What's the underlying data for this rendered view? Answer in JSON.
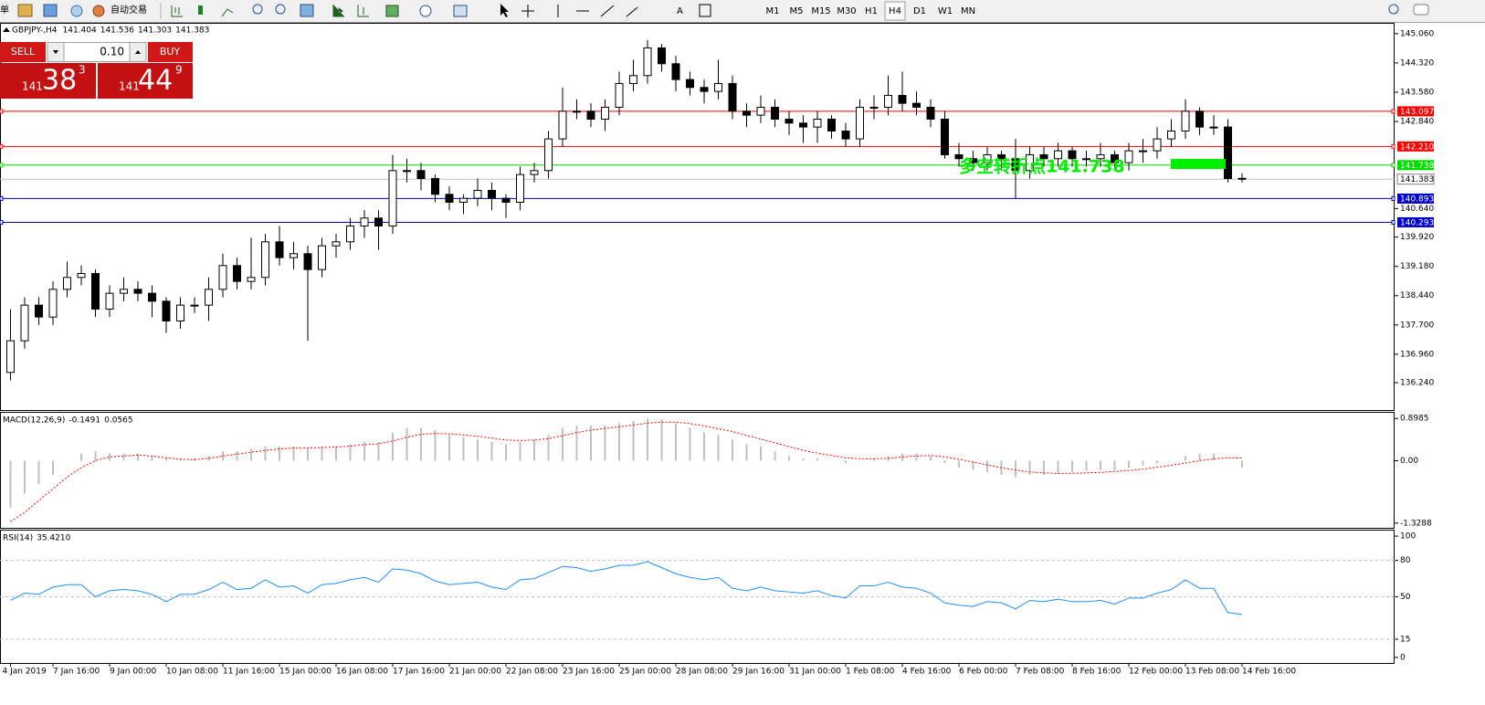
{
  "toolbar": {
    "menu_tail": "单",
    "autotrade": "自动交易",
    "timeframes": [
      "M1",
      "M5",
      "M15",
      "M30",
      "H1",
      "H4",
      "D1",
      "W1",
      "MN"
    ]
  },
  "trade_panel": {
    "sell": "SELL",
    "lot": "0.10",
    "buy": "BUY",
    "sell_price": {
      "big": "141",
      "pips": "38",
      "point": "3"
    },
    "buy_price": {
      "big": "141",
      "pips": "44",
      "point": "9"
    }
  },
  "chart_data": [
    {
      "type": "candlestick",
      "title": "GBPJPY-,H4",
      "last_ohlc": [
        141.404,
        141.536,
        141.303,
        141.383
      ],
      "annotation": "多空转折点141.738",
      "bid": 141.383,
      "levels": [
        {
          "value": 143.097,
          "label": "143.097",
          "color": "#ff0000"
        },
        {
          "value": 142.21,
          "label": "142.210",
          "color": "#ff0000"
        },
        {
          "value": 141.738,
          "label": "141.738",
          "color": "#00dd00"
        },
        {
          "value": 140.893,
          "label": "140.893",
          "color": "#0000cc"
        },
        {
          "value": 140.293,
          "label": "140.293",
          "color": "#0000cc"
        }
      ],
      "ylim": [
        135.55,
        145.31
      ],
      "yticks": [
        {
          "value": 145.06,
          "label": "145.060"
        },
        {
          "value": 144.32,
          "label": "144.320"
        },
        {
          "value": 143.58,
          "label": "143.580"
        },
        {
          "value": 142.84,
          "label": "142.840"
        },
        {
          "value": 140.64,
          "label": "140.640"
        },
        {
          "value": 139.92,
          "label": "139.920"
        },
        {
          "value": 139.18,
          "label": "139.180"
        },
        {
          "value": 138.44,
          "label": "138.440"
        },
        {
          "value": 137.7,
          "label": "137.700"
        },
        {
          "value": 136.96,
          "label": "136.960"
        },
        {
          "value": 136.24,
          "label": "136.240"
        }
      ],
      "categories": [
        "4 Jan 2019",
        null,
        null,
        "7 Jan 16:00",
        null,
        null,
        null,
        "9 Jan 00:00",
        null,
        null,
        null,
        "10 Jan 08:00",
        null,
        null,
        null,
        "11 Jan 16:00",
        null,
        null,
        null,
        "15 Jan 00:00",
        null,
        null,
        null,
        "16 Jan 08:00",
        null,
        null,
        null,
        "17 Jan 16:00",
        null,
        null,
        null,
        "21 Jan 00:00",
        null,
        null,
        null,
        "22 Jan 08:00",
        null,
        null,
        null,
        "23 Jan 16:00",
        null,
        null,
        null,
        "25 Jan 00:00",
        null,
        null,
        null,
        "28 Jan 08:00",
        null,
        null,
        null,
        "29 Jan 16:00",
        null,
        null,
        null,
        "31 Jan 00:00",
        null,
        null,
        null,
        "1 Feb 08:00",
        null,
        null,
        null,
        "4 Feb 16:00",
        null,
        null,
        null,
        "6 Feb 00:00",
        null,
        null,
        null,
        "7 Feb 08:00",
        null,
        null,
        null,
        "8 Feb 16:00",
        null,
        null,
        null,
        "12 Feb 00:00",
        null,
        null,
        null,
        "13 Feb 08:00",
        null,
        null,
        null,
        "14 Feb 16:00"
      ],
      "open": [
        136.5,
        137.3,
        138.2,
        137.9,
        138.6,
        138.9,
        139.0,
        138.1,
        138.5,
        138.6,
        138.5,
        138.3,
        137.8,
        138.2,
        138.2,
        138.6,
        139.2,
        138.8,
        138.9,
        139.8,
        139.4,
        139.5,
        139.1,
        139.7,
        139.8,
        140.2,
        140.4,
        140.2,
        141.6,
        141.6,
        141.4,
        141.0,
        140.8,
        140.9,
        141.1,
        140.9,
        140.8,
        141.5,
        141.6,
        142.4,
        143.1,
        143.1,
        142.9,
        143.2,
        143.8,
        144.0,
        144.7,
        144.3,
        143.9,
        143.7,
        143.6,
        143.8,
        143.1,
        143.0,
        143.2,
        142.9,
        142.8,
        142.7,
        142.9,
        142.6,
        142.4,
        143.2,
        143.2,
        143.5,
        143.3,
        143.2,
        142.9,
        142.0,
        141.9,
        141.8,
        142.0,
        141.9,
        141.6,
        142.0,
        141.9,
        142.1,
        141.9,
        141.9,
        142.0,
        141.8,
        142.1,
        142.1,
        142.4,
        142.6,
        143.1,
        142.7,
        142.7,
        141.404
      ],
      "high": [
        138.1,
        138.4,
        138.4,
        138.8,
        139.3,
        139.2,
        139.1,
        138.7,
        138.9,
        138.8,
        138.7,
        138.4,
        138.4,
        138.4,
        138.9,
        139.5,
        139.4,
        139.9,
        140.0,
        140.2,
        139.8,
        139.7,
        139.9,
        140.0,
        140.4,
        140.6,
        140.6,
        142.0,
        141.9,
        141.8,
        141.5,
        141.2,
        141.0,
        141.4,
        141.3,
        141.0,
        141.7,
        141.8,
        142.6,
        143.7,
        143.4,
        143.3,
        143.4,
        144.1,
        144.4,
        144.9,
        144.8,
        144.5,
        144.1,
        143.9,
        144.4,
        144.0,
        143.3,
        143.5,
        143.4,
        143.1,
        143.0,
        143.1,
        143.0,
        142.8,
        143.4,
        143.5,
        144.0,
        144.1,
        143.6,
        143.4,
        143.1,
        142.3,
        142.1,
        142.2,
        142.1,
        142.4,
        142.2,
        142.2,
        142.3,
        142.2,
        142.1,
        142.3,
        142.1,
        142.3,
        142.4,
        142.7,
        142.9,
        143.4,
        143.2,
        143.0,
        142.9,
        141.536
      ],
      "low": [
        136.3,
        137.1,
        137.7,
        137.7,
        138.4,
        138.7,
        137.9,
        137.9,
        138.3,
        138.3,
        137.9,
        137.5,
        137.6,
        138.0,
        137.8,
        138.4,
        138.6,
        138.6,
        138.7,
        139.2,
        139.1,
        137.3,
        138.9,
        139.4,
        139.6,
        139.9,
        139.6,
        140.0,
        141.3,
        141.1,
        140.8,
        140.6,
        140.5,
        140.7,
        140.6,
        140.4,
        140.6,
        141.3,
        141.4,
        142.2,
        142.9,
        142.7,
        142.6,
        143.0,
        143.6,
        143.8,
        144.1,
        143.6,
        143.5,
        143.3,
        143.4,
        142.9,
        142.7,
        142.8,
        142.7,
        142.5,
        142.3,
        142.3,
        142.4,
        142.2,
        142.2,
        142.9,
        143.0,
        143.1,
        143.0,
        142.7,
        141.9,
        141.7,
        141.6,
        141.6,
        141.6,
        140.9,
        141.4,
        141.7,
        141.7,
        141.7,
        141.7,
        141.7,
        141.6,
        141.6,
        141.8,
        141.9,
        142.2,
        142.4,
        142.5,
        142.5,
        141.3,
        141.303
      ],
      "close": [
        137.3,
        138.2,
        137.9,
        138.6,
        138.9,
        139.0,
        138.1,
        138.5,
        138.6,
        138.5,
        138.3,
        137.8,
        138.2,
        138.2,
        138.6,
        139.2,
        138.8,
        138.9,
        139.8,
        139.4,
        139.5,
        139.1,
        139.7,
        139.8,
        140.2,
        140.4,
        140.2,
        141.6,
        141.6,
        141.4,
        141.0,
        140.8,
        140.9,
        141.1,
        140.9,
        140.8,
        141.5,
        141.6,
        142.4,
        143.1,
        143.1,
        142.9,
        143.2,
        143.8,
        144.0,
        144.7,
        144.3,
        143.9,
        143.7,
        143.6,
        143.8,
        143.1,
        143.0,
        143.2,
        142.9,
        142.8,
        142.7,
        142.9,
        142.6,
        142.4,
        143.2,
        143.2,
        143.5,
        143.3,
        143.2,
        142.9,
        142.0,
        141.9,
        141.8,
        142.0,
        141.9,
        141.6,
        142.0,
        141.9,
        142.1,
        141.9,
        141.9,
        142.0,
        141.8,
        142.1,
        142.1,
        142.4,
        142.6,
        143.1,
        142.7,
        142.7,
        141.4,
        141.383
      ]
    },
    {
      "type": "macd",
      "title": "MACD(12,26,9)",
      "ylim": [
        -1.43,
        1.02
      ],
      "yticks": [
        0.8985,
        {
          "value": 0,
          "label": "0.00"
        },
        -1.3288
      ],
      "series": [
        {
          "color": "#c0c0c0",
          "values": [
            -1.0,
            -0.7,
            -0.5,
            -0.3,
            0.0,
            0.15,
            0.2,
            0.15,
            0.15,
            0.15,
            0.1,
            0.05,
            0.05,
            0.05,
            0.1,
            0.2,
            0.2,
            0.25,
            0.3,
            0.3,
            0.3,
            0.25,
            0.3,
            0.3,
            0.35,
            0.4,
            0.4,
            0.6,
            0.7,
            0.7,
            0.65,
            0.55,
            0.5,
            0.45,
            0.4,
            0.35,
            0.4,
            0.45,
            0.55,
            0.7,
            0.75,
            0.75,
            0.75,
            0.8,
            0.85,
            0.9,
            0.88,
            0.8,
            0.7,
            0.6,
            0.55,
            0.45,
            0.35,
            0.3,
            0.2,
            0.1,
            0.05,
            0.05,
            0.0,
            -0.05,
            0.0,
            0.05,
            0.1,
            0.15,
            0.15,
            0.1,
            -0.05,
            -0.15,
            -0.2,
            -0.25,
            -0.3,
            -0.35,
            -0.3,
            -0.3,
            -0.28,
            -0.25,
            -0.22,
            -0.2,
            -0.2,
            -0.15,
            -0.1,
            -0.05,
            0.0,
            0.1,
            0.15,
            0.15,
            0.0,
            -0.1491
          ]
        },
        {
          "color": "#ff0000",
          "values": [
            -1.3,
            -1.1,
            -0.85,
            -0.6,
            -0.35,
            -0.15,
            0.0,
            0.08,
            0.1,
            0.12,
            0.1,
            0.06,
            0.03,
            0.02,
            0.05,
            0.1,
            0.14,
            0.18,
            0.22,
            0.25,
            0.27,
            0.27,
            0.28,
            0.29,
            0.31,
            0.34,
            0.36,
            0.42,
            0.5,
            0.56,
            0.58,
            0.57,
            0.55,
            0.52,
            0.48,
            0.44,
            0.43,
            0.44,
            0.47,
            0.53,
            0.6,
            0.65,
            0.69,
            0.72,
            0.76,
            0.8,
            0.82,
            0.82,
            0.79,
            0.74,
            0.68,
            0.62,
            0.54,
            0.46,
            0.38,
            0.3,
            0.22,
            0.16,
            0.11,
            0.06,
            0.04,
            0.04,
            0.05,
            0.08,
            0.1,
            0.11,
            0.08,
            0.03,
            -0.03,
            -0.09,
            -0.15,
            -0.2,
            -0.24,
            -0.26,
            -0.27,
            -0.27,
            -0.26,
            -0.25,
            -0.23,
            -0.21,
            -0.18,
            -0.14,
            -0.1,
            -0.05,
            0.0,
            0.04,
            0.06,
            0.0565
          ]
        }
      ]
    },
    {
      "type": "line",
      "title": "RSI(14)",
      "color": "#1e90ff",
      "current": {
        "value": 35.421,
        "label": "35.4210"
      },
      "ylim": [
        -4.6,
        104.6
      ],
      "yticks": [
        100,
        80,
        50,
        15,
        0
      ],
      "levels": [
        80,
        50,
        15
      ],
      "values": [
        47,
        53,
        52,
        58,
        60,
        60,
        50,
        55,
        56,
        55,
        52,
        46,
        52,
        52,
        56,
        62,
        56,
        57,
        64,
        58,
        59,
        53,
        60,
        61,
        64,
        66,
        62,
        73,
        72,
        69,
        63,
        60,
        61,
        62,
        58,
        56,
        64,
        65,
        70,
        75,
        74,
        71,
        73,
        76,
        76,
        79,
        74,
        69,
        66,
        64,
        66,
        57,
        55,
        58,
        55,
        54,
        53,
        55,
        51,
        49,
        59,
        59,
        62,
        58,
        57,
        53,
        45,
        43,
        42,
        46,
        45,
        40,
        47,
        46,
        48,
        46,
        46,
        47,
        44,
        49,
        49,
        53,
        56,
        64,
        57,
        57,
        37,
        35.421
      ]
    }
  ]
}
